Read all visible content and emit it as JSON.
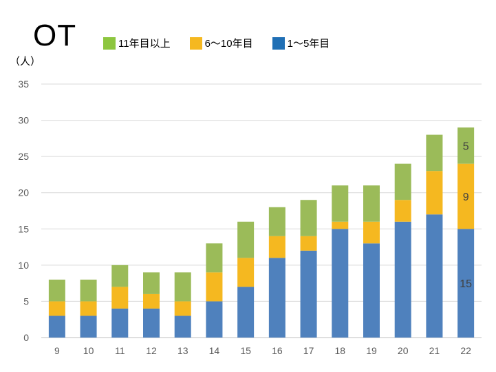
{
  "title": "OT",
  "unit_label": "（人）",
  "colors": {
    "green": "#9bbb59",
    "yellow": "#f5b820",
    "blue": "#4f81bd",
    "legend_blue": "#1f6fb5",
    "grid": "#d9d9d9"
  },
  "chart_data": {
    "type": "bar",
    "stacked": true,
    "title": "OT",
    "ylabel": "（人）",
    "xlabel": "",
    "ylim": [
      0,
      35
    ],
    "yticks": [
      0,
      5,
      10,
      15,
      20,
      25,
      30,
      35
    ],
    "grid": true,
    "legend_position": "top",
    "categories": [
      "9",
      "10",
      "11",
      "12",
      "13",
      "14",
      "15",
      "16",
      "17",
      "18",
      "19",
      "20",
      "21",
      "22"
    ],
    "series": [
      {
        "name": "1～5年目",
        "color": "#4f81bd",
        "values": [
          3,
          3,
          4,
          4,
          3,
          5,
          7,
          11,
          12,
          15,
          13,
          16,
          17,
          15
        ]
      },
      {
        "name": "6～10年目",
        "color": "#f5b820",
        "values": [
          2,
          2,
          3,
          2,
          2,
          4,
          4,
          3,
          2,
          1,
          3,
          3,
          6,
          9
        ]
      },
      {
        "name": "11年目以上",
        "color": "#9bbb59",
        "values": [
          3,
          3,
          3,
          3,
          4,
          4,
          5,
          4,
          5,
          5,
          5,
          5,
          5,
          5
        ]
      }
    ],
    "legend": [
      {
        "label": "11年目以上",
        "color": "#8dc63f"
      },
      {
        "label": "6～10年目",
        "color": "#f5b820"
      },
      {
        "label": "1～5年目",
        "color": "#1f6fb5"
      }
    ],
    "data_labels": [
      {
        "category": "22",
        "series": "11年目以上",
        "text": "5"
      },
      {
        "category": "22",
        "series": "6～10年目",
        "text": "9"
      },
      {
        "category": "22",
        "series": "1～5年目",
        "text": "15"
      }
    ]
  }
}
